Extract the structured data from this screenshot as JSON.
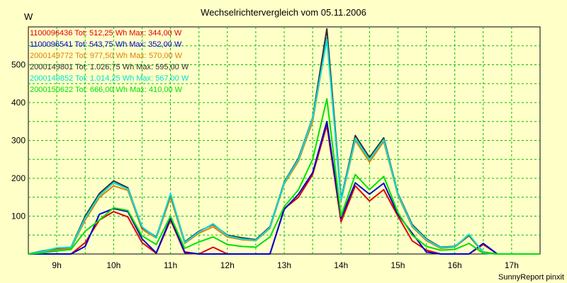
{
  "chart_data": {
    "type": "line",
    "title": "Wechselrichtervergleich vom 05.11.2006",
    "ylabel": "W",
    "xlabel": "",
    "footer": "SunnyReport pinxit",
    "x_ticks": [
      "9h",
      "10h",
      "11h",
      "12h",
      "13h",
      "14h",
      "15h",
      "16h",
      "17h"
    ],
    "x_tick_values": [
      9,
      10,
      11,
      12,
      13,
      14,
      15,
      16,
      17
    ],
    "y_ticks": [
      100,
      200,
      300,
      400,
      500
    ],
    "xlim": [
      8.5,
      17.5
    ],
    "ylim": [
      0,
      600
    ],
    "grid": true,
    "legend_position": "top-left",
    "x": [
      8.5,
      8.75,
      9.0,
      9.25,
      9.5,
      9.75,
      10.0,
      10.25,
      10.5,
      10.75,
      11.0,
      11.25,
      11.5,
      11.75,
      12.0,
      12.25,
      12.5,
      12.75,
      13.0,
      13.25,
      13.5,
      13.75,
      14.0,
      14.25,
      14.5,
      14.75,
      15.0,
      15.25,
      15.5,
      15.75,
      16.0,
      16.25,
      16.5,
      16.75,
      17.0,
      17.25,
      17.5
    ],
    "series": [
      {
        "name": "1100096436",
        "legend": "1100096436 Tot: 512,25 Wh Max: 344,00 W",
        "color": "#e00000",
        "values": [
          0,
          0,
          0,
          0,
          30,
          90,
          112,
          98,
          30,
          2,
          90,
          3,
          0,
          18,
          0,
          0,
          0,
          0,
          120,
          150,
          210,
          340,
          85,
          180,
          140,
          170,
          100,
          35,
          10,
          0,
          0,
          0,
          25,
          0,
          0,
          0,
          0
        ]
      },
      {
        "name": "1100096541",
        "legend": "1100096541 Tot: 543,75 Wh Max: 352,00 W",
        "color": "#0000d0",
        "values": [
          0,
          0,
          0,
          0,
          20,
          105,
          120,
          112,
          40,
          3,
          95,
          5,
          0,
          0,
          0,
          0,
          0,
          0,
          118,
          158,
          215,
          350,
          95,
          188,
          158,
          187,
          105,
          55,
          5,
          0,
          0,
          0,
          28,
          0,
          0,
          0,
          0
        ]
      },
      {
        "name": "2000149772",
        "legend": "2000149772 Tot: 977,50 Wh Max: 570,00 W",
        "color": "#e08000",
        "values": [
          0,
          5,
          12,
          15,
          90,
          150,
          180,
          168,
          65,
          42,
          150,
          28,
          55,
          72,
          45,
          38,
          35,
          68,
          185,
          245,
          350,
          570,
          140,
          300,
          243,
          297,
          155,
          72,
          35,
          15,
          18,
          48,
          3,
          0,
          0,
          0,
          0
        ]
      },
      {
        "name": "2000149801",
        "legend": "2000149801 Tot: 1.026,75 Wh Max: 595,00 W",
        "color": "#303030",
        "values": [
          0,
          8,
          15,
          18,
          100,
          160,
          193,
          175,
          70,
          45,
          158,
          32,
          60,
          78,
          50,
          43,
          38,
          72,
          190,
          253,
          360,
          595,
          145,
          313,
          255,
          307,
          160,
          78,
          40,
          18,
          20,
          50,
          5,
          0,
          0,
          0,
          0
        ]
      },
      {
        "name": "2000149852",
        "legend": "2000149852 Tot: 1.014,25 Wh Max: 567,00 W",
        "color": "#00e0e0",
        "values": [
          0,
          7,
          16,
          18,
          95,
          155,
          188,
          172,
          72,
          43,
          160,
          30,
          58,
          80,
          48,
          40,
          36,
          70,
          188,
          250,
          358,
          567,
          142,
          305,
          250,
          302,
          158,
          75,
          38,
          17,
          19,
          52,
          4,
          0,
          0,
          0,
          0
        ]
      },
      {
        "name": "2000150622",
        "legend": "2000150622 Tot: 666,00 Wh Max: 410,00 W",
        "color": "#00e000",
        "values": [
          0,
          3,
          8,
          12,
          60,
          90,
          122,
          115,
          48,
          25,
          100,
          15,
          32,
          45,
          25,
          20,
          18,
          45,
          125,
          170,
          250,
          410,
          100,
          210,
          170,
          205,
          110,
          50,
          20,
          10,
          12,
          28,
          2,
          0,
          0,
          0,
          0
        ]
      }
    ]
  }
}
